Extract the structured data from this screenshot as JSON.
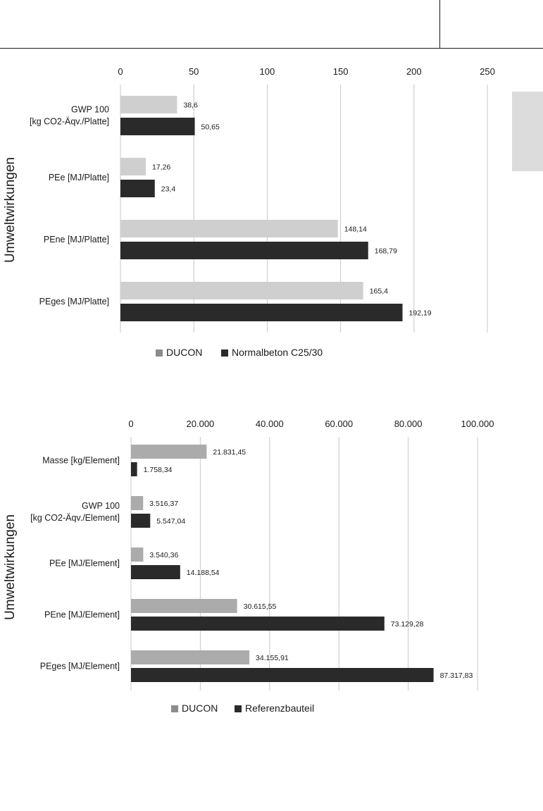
{
  "chart_data": [
    {
      "type": "bar",
      "orientation": "horizontal",
      "ylabel": "Umweltwirkungen",
      "categories": [
        [
          "GWP 100",
          "[kg CO2-Äqv./Platte]"
        ],
        [
          "PEe [MJ/Platte]"
        ],
        [
          "PEne [MJ/Platte]"
        ],
        [
          "PEges [MJ/Platte]"
        ]
      ],
      "series": [
        {
          "name": "DUCON",
          "values": [
            38.6,
            17.26,
            148.14,
            165.4
          ],
          "labels": [
            "38,6",
            "17,26",
            "148,14",
            "165,4"
          ],
          "color": "#cfcfcf"
        },
        {
          "name": "Normalbeton C25/30",
          "values": [
            50.65,
            23.4,
            168.79,
            192.19
          ],
          "labels": [
            "50,65",
            "23,4",
            "168,79",
            "192,19"
          ],
          "color": "#2a2a2a"
        }
      ],
      "xlim": [
        0,
        250
      ],
      "xticks": [
        "0",
        "50",
        "100",
        "150",
        "200",
        "250"
      ],
      "grid": true,
      "legend_position": "bottom"
    },
    {
      "type": "bar",
      "orientation": "horizontal",
      "ylabel": "Umweltwirkungen",
      "categories": [
        [
          "Masse [kg/Element]"
        ],
        [
          "GWP 100",
          "[kg CO2-Äqv./Element]"
        ],
        [
          "PEe [MJ/Element]"
        ],
        [
          "PEne [MJ/Element]"
        ],
        [
          "PEges [MJ/Element]"
        ]
      ],
      "series": [
        {
          "name": "DUCON",
          "values": [
            21831.45,
            3516.37,
            3540.36,
            30615.55,
            34155.91
          ],
          "labels": [
            "21.831,45",
            "3.516,37",
            "3.540,36",
            "30.615,55",
            "34.155,91"
          ],
          "color": "#ababab"
        },
        {
          "name": "Referenzbauteil",
          "values": [
            1758.34,
            5547.04,
            14188.54,
            73129.28,
            87317.83
          ],
          "labels": [
            "1.758,34",
            "5.547,04",
            "14.188,54",
            "73.129,28",
            "87.317,83"
          ],
          "color": "#2a2a2a"
        }
      ],
      "xlim": [
        0,
        100000
      ],
      "xticks": [
        "0",
        "20.000",
        "40.000",
        "60.000",
        "80.000",
        "100.000"
      ],
      "grid": true,
      "legend_position": "bottom"
    }
  ]
}
